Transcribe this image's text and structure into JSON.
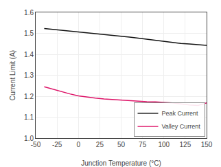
{
  "chart_data": {
    "type": "line",
    "title": "",
    "xlabel": "Junction Temperature (°C)",
    "ylabel": "Current Limit (A)",
    "x": [
      -40,
      -30,
      -20,
      -10,
      0,
      10,
      20,
      30,
      40,
      50,
      60,
      70,
      80,
      90,
      100,
      110,
      120,
      130,
      140,
      150
    ],
    "series": [
      {
        "name": "Peak Current",
        "color": "#111111",
        "values": [
          1.523,
          1.519,
          1.516,
          1.511,
          1.507,
          1.503,
          1.499,
          1.495,
          1.491,
          1.487,
          1.482,
          1.477,
          1.472,
          1.467,
          1.461,
          1.456,
          1.452,
          1.449,
          1.446,
          1.443
        ]
      },
      {
        "name": "Valley Current",
        "color": "#dd1166",
        "values": [
          1.245,
          1.233,
          1.222,
          1.211,
          1.202,
          1.196,
          1.191,
          1.187,
          1.184,
          1.181,
          1.178,
          1.176,
          1.174,
          1.173,
          1.171,
          1.168,
          1.163,
          1.158,
          1.156,
          1.168
        ]
      }
    ],
    "xlim": [
      -50,
      150
    ],
    "ylim": [
      1.0,
      1.6
    ],
    "xticks": [
      -50,
      -25,
      0,
      25,
      50,
      75,
      100,
      125,
      150
    ],
    "yticks": [
      {
        "value": 1.0,
        "label": "1.0"
      },
      1.1,
      1.2,
      1.3,
      1.4,
      1.5,
      1.6
    ],
    "grid": true,
    "legend": "lower right"
  }
}
